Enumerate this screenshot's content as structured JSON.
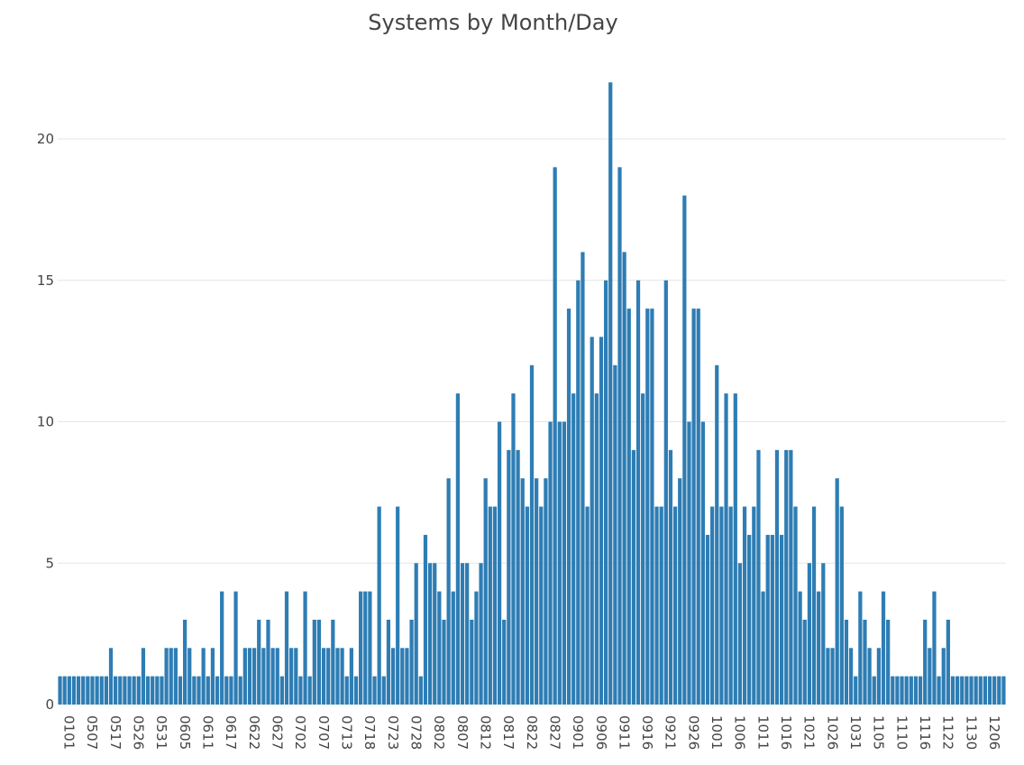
{
  "chart_data": {
    "type": "bar",
    "title": "Systems by Month/Day",
    "xlabel": "",
    "ylabel": "",
    "ylim": [
      0,
      22.6
    ],
    "yticks": [
      0,
      5,
      10,
      15,
      20
    ],
    "grid": true,
    "legend": "none",
    "bar_color": "#2e7db4",
    "xtick_labels": [
      "0101",
      "0507",
      "0517",
      "0526",
      "0531",
      "0605",
      "0611",
      "0617",
      "0622",
      "0627",
      "0702",
      "0707",
      "0713",
      "0718",
      "0723",
      "0728",
      "0802",
      "0807",
      "0812",
      "0817",
      "0822",
      "0827",
      "0901",
      "0906",
      "0911",
      "0916",
      "0921",
      "0926",
      "1001",
      "1006",
      "1011",
      "1016",
      "1021",
      "1026",
      "1031",
      "1105",
      "1110",
      "1116",
      "1122",
      "1130",
      "1206"
    ],
    "values": [
      1,
      1,
      1,
      1,
      1,
      1,
      1,
      1,
      1,
      1,
      1,
      2,
      1,
      1,
      1,
      1,
      1,
      1,
      2,
      1,
      1,
      1,
      1,
      2,
      2,
      2,
      1,
      3,
      2,
      1,
      1,
      2,
      1,
      2,
      1,
      4,
      1,
      1,
      4,
      1,
      2,
      2,
      2,
      3,
      2,
      3,
      2,
      2,
      1,
      4,
      2,
      2,
      1,
      4,
      1,
      3,
      3,
      2,
      2,
      3,
      2,
      2,
      1,
      2,
      1,
      4,
      4,
      4,
      1,
      7,
      1,
      3,
      2,
      7,
      2,
      2,
      3,
      5,
      1,
      6,
      5,
      5,
      4,
      3,
      8,
      4,
      11,
      5,
      5,
      3,
      4,
      5,
      8,
      7,
      7,
      10,
      3,
      9,
      11,
      9,
      8,
      7,
      12,
      8,
      7,
      8,
      10,
      19,
      10,
      10,
      14,
      11,
      15,
      16,
      7,
      13,
      11,
      13,
      15,
      22,
      12,
      19,
      16,
      14,
      9,
      15,
      11,
      14,
      14,
      7,
      7,
      15,
      9,
      7,
      8,
      18,
      10,
      14,
      14,
      10,
      6,
      7,
      12,
      7,
      11,
      7,
      11,
      5,
      7,
      6,
      7,
      9,
      4,
      6,
      6,
      9,
      6,
      9,
      9,
      7,
      4,
      3,
      5,
      7,
      4,
      5,
      2,
      2,
      8,
      7,
      3,
      2,
      1,
      4,
      3,
      2,
      1,
      2,
      4,
      3,
      1,
      1,
      1,
      1,
      1,
      1,
      1,
      3,
      2,
      4,
      1,
      2,
      3,
      1,
      1,
      1,
      1,
      1,
      1,
      1,
      1,
      1,
      1,
      1,
      1
    ]
  }
}
